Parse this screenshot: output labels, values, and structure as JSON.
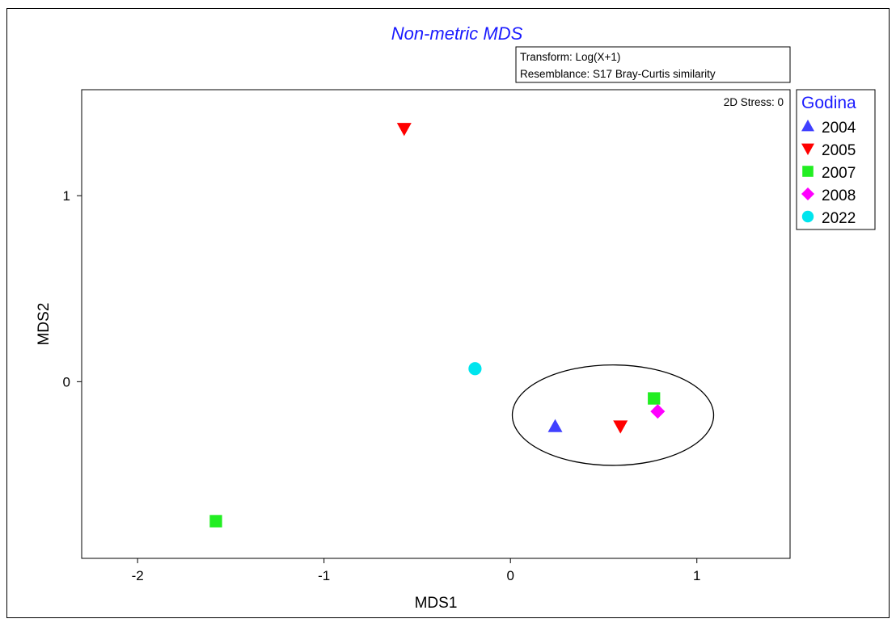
{
  "chart_data": {
    "type": "scatter",
    "title": "Non-metric MDS",
    "transform_note": "Transform: Log(X+1)",
    "resemblance_note": "Resemblance: S17 Bray-Curtis similarity",
    "stress": "2D Stress: 0",
    "xlabel": "MDS1",
    "ylabel": "MDS2",
    "xlim": [
      -2.3,
      1.5
    ],
    "ylim": [
      -0.95,
      1.57
    ],
    "xticks": [
      -2,
      -1,
      0,
      1
    ],
    "yticks": [
      0,
      1
    ],
    "xtick_labels": [
      "-2",
      "-1",
      "0",
      "1"
    ],
    "ytick_labels": [
      "0",
      "1"
    ],
    "grid": false,
    "legend_title": "Godina",
    "legend_position": "right, outside top",
    "series": [
      {
        "name": "2004",
        "marker": "triangle-up",
        "color": "#4040ff",
        "points": [
          {
            "x": 0.24,
            "y": -0.24
          }
        ]
      },
      {
        "name": "2005",
        "marker": "triangle-down",
        "color": "#ff0000",
        "points": [
          {
            "x": -0.57,
            "y": 1.36
          },
          {
            "x": 0.59,
            "y": -0.24
          }
        ]
      },
      {
        "name": "2007",
        "marker": "square",
        "color": "#22ee22",
        "points": [
          {
            "x": -1.58,
            "y": -0.75
          },
          {
            "x": 0.77,
            "y": -0.09
          }
        ]
      },
      {
        "name": "2008",
        "marker": "diamond",
        "color": "#ff00ff",
        "points": [
          {
            "x": 0.79,
            "y": -0.16
          }
        ]
      },
      {
        "name": "2022",
        "marker": "circle",
        "color": "#00e5ee",
        "points": [
          {
            "x": -0.19,
            "y": 0.07
          }
        ]
      }
    ],
    "ellipse": {
      "cx": 0.55,
      "cy": -0.18,
      "rx": 0.54,
      "ry": 0.27
    }
  }
}
